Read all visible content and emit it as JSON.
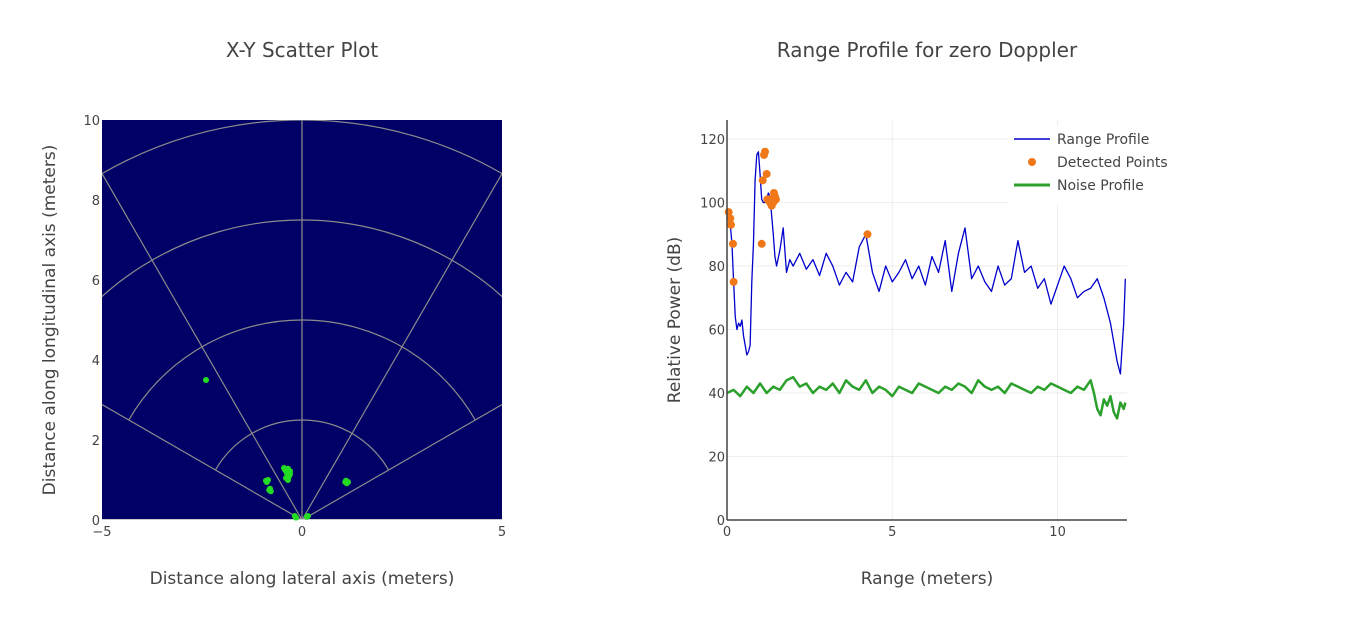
{
  "chart_data": [
    {
      "type": "scatter",
      "title": "X-Y Scatter Plot",
      "xlabel": "Distance along lateral axis (meters)",
      "ylabel": "Distance along longitudinal axis (meters)",
      "xlim": [
        -5,
        5
      ],
      "ylim": [
        0,
        10
      ],
      "x_ticks": [
        -5,
        0,
        5
      ],
      "x_tick_labels": [
        "−5",
        "0",
        "5"
      ],
      "y_ticks": [
        0,
        2,
        4,
        6,
        8,
        10
      ],
      "y_tick_labels": [
        "0",
        "2",
        "4",
        "6",
        "8",
        "10"
      ],
      "background": "#000066",
      "grid_color": "#8c8c8c",
      "marker_color": "#22dd22",
      "polar_grid": {
        "radii": [
          2.5,
          5,
          7.5,
          10
        ],
        "angles_deg_from_vertical": [
          -60,
          -30,
          0,
          30,
          60
        ]
      },
      "points": [
        {
          "x": -2.4,
          "y": 3.5
        },
        {
          "x": -0.45,
          "y": 1.3
        },
        {
          "x": -0.35,
          "y": 1.28
        },
        {
          "x": -0.3,
          "y": 1.22
        },
        {
          "x": -0.38,
          "y": 1.18
        },
        {
          "x": -0.32,
          "y": 1.1
        },
        {
          "x": -0.4,
          "y": 1.05
        },
        {
          "x": -0.35,
          "y": 1.0
        },
        {
          "x": -0.3,
          "y": 1.15
        },
        {
          "x": -0.42,
          "y": 1.25
        },
        {
          "x": -0.9,
          "y": 0.98
        },
        {
          "x": -0.85,
          "y": 1.0
        },
        {
          "x": -0.88,
          "y": 0.95
        },
        {
          "x": -0.8,
          "y": 0.78
        },
        {
          "x": -0.78,
          "y": 0.72
        },
        {
          "x": -0.82,
          "y": 0.75
        },
        {
          "x": 1.1,
          "y": 0.98
        },
        {
          "x": 1.15,
          "y": 0.95
        },
        {
          "x": 1.12,
          "y": 0.92
        },
        {
          "x": 1.08,
          "y": 0.95
        },
        {
          "x": -0.18,
          "y": 0.1
        },
        {
          "x": -0.15,
          "y": 0.06
        },
        {
          "x": 0.12,
          "y": 0.08
        },
        {
          "x": 0.15,
          "y": 0.1
        }
      ]
    },
    {
      "type": "line",
      "title": "Range Profile for zero Doppler",
      "xlabel": "Range (meters)",
      "ylabel": "Relative Power (dB)",
      "xlim": [
        0,
        12.1
      ],
      "ylim": [
        0,
        126
      ],
      "x_ticks": [
        0,
        5,
        10
      ],
      "y_ticks": [
        0,
        20,
        40,
        60,
        80,
        100,
        120
      ],
      "legend_position": "top-right",
      "series": [
        {
          "name": "Range Profile",
          "color": "#0000cc",
          "x": [
            0,
            0.05,
            0.1,
            0.15,
            0.2,
            0.25,
            0.3,
            0.35,
            0.4,
            0.45,
            0.5,
            0.55,
            0.6,
            0.65,
            0.7,
            0.75,
            0.8,
            0.85,
            0.9,
            0.95,
            1.0,
            1.05,
            1.1,
            1.15,
            1.2,
            1.25,
            1.3,
            1.35,
            1.4,
            1.45,
            1.5,
            1.6,
            1.7,
            1.8,
            1.9,
            2.0,
            2.2,
            2.4,
            2.6,
            2.8,
            3.0,
            3.2,
            3.4,
            3.6,
            3.8,
            4.0,
            4.2,
            4.4,
            4.6,
            4.8,
            5.0,
            5.2,
            5.4,
            5.6,
            5.8,
            6.0,
            6.2,
            6.4,
            6.6,
            6.8,
            7.0,
            7.2,
            7.4,
            7.6,
            7.8,
            8.0,
            8.2,
            8.4,
            8.6,
            8.8,
            9.0,
            9.2,
            9.4,
            9.6,
            9.8,
            10.0,
            10.2,
            10.4,
            10.6,
            10.8,
            11.0,
            11.2,
            11.4,
            11.6,
            11.8,
            11.9,
            12.0,
            12.05
          ],
          "values": [
            97,
            95,
            93,
            87,
            75,
            64,
            60,
            62,
            61,
            63,
            58,
            55,
            52,
            53,
            55,
            75,
            87,
            107,
            115,
            116,
            109,
            101,
            100,
            100,
            101,
            103,
            102,
            96,
            90,
            83,
            80,
            85,
            92,
            78,
            82,
            80,
            84,
            79,
            82,
            77,
            84,
            80,
            74,
            78,
            75,
            86,
            90,
            78,
            72,
            80,
            75,
            78,
            82,
            76,
            80,
            74,
            83,
            78,
            88,
            72,
            84,
            92,
            76,
            80,
            75,
            72,
            80,
            74,
            76,
            88,
            78,
            80,
            73,
            76,
            68,
            74,
            80,
            76,
            70,
            72,
            73,
            76,
            70,
            62,
            50,
            46,
            62,
            76
          ]
        },
        {
          "name": "Detected Points",
          "color": "#f07818",
          "x": [
            0.05,
            0.1,
            0.12,
            0.18,
            0.2,
            1.05,
            1.08,
            1.12,
            1.15,
            1.2,
            1.22,
            1.28,
            1.3,
            1.35,
            1.4,
            1.42,
            1.45,
            1.48,
            4.25
          ],
          "values": [
            97,
            95,
            93,
            87,
            75,
            87,
            107,
            115,
            116,
            109,
            101,
            101,
            100,
            99,
            100,
            103,
            102,
            101,
            90
          ]
        },
        {
          "name": "Noise Profile",
          "color": "#2ca02c",
          "x": [
            0,
            0.2,
            0.4,
            0.6,
            0.8,
            1.0,
            1.2,
            1.4,
            1.6,
            1.8,
            2.0,
            2.2,
            2.4,
            2.6,
            2.8,
            3.0,
            3.2,
            3.4,
            3.6,
            3.8,
            4.0,
            4.2,
            4.4,
            4.6,
            4.8,
            5.0,
            5.2,
            5.4,
            5.6,
            5.8,
            6.0,
            6.2,
            6.4,
            6.6,
            6.8,
            7.0,
            7.2,
            7.4,
            7.6,
            7.8,
            8.0,
            8.2,
            8.4,
            8.6,
            8.8,
            9.0,
            9.2,
            9.4,
            9.6,
            9.8,
            10.0,
            10.2,
            10.4,
            10.6,
            10.8,
            11.0,
            11.1,
            11.2,
            11.3,
            11.4,
            11.5,
            11.6,
            11.7,
            11.8,
            11.9,
            12.0,
            12.05
          ],
          "values": [
            40,
            41,
            39,
            42,
            40,
            43,
            40,
            42,
            41,
            44,
            45,
            42,
            43,
            40,
            42,
            41,
            43,
            40,
            44,
            42,
            41,
            44,
            40,
            42,
            41,
            39,
            42,
            41,
            40,
            43,
            42,
            41,
            40,
            42,
            41,
            43,
            42,
            40,
            44,
            42,
            41,
            42,
            40,
            43,
            42,
            41,
            40,
            42,
            41,
            43,
            42,
            41,
            40,
            42,
            41,
            44,
            40,
            35,
            33,
            38,
            36,
            39,
            34,
            32,
            37,
            35,
            37
          ]
        }
      ]
    }
  ]
}
